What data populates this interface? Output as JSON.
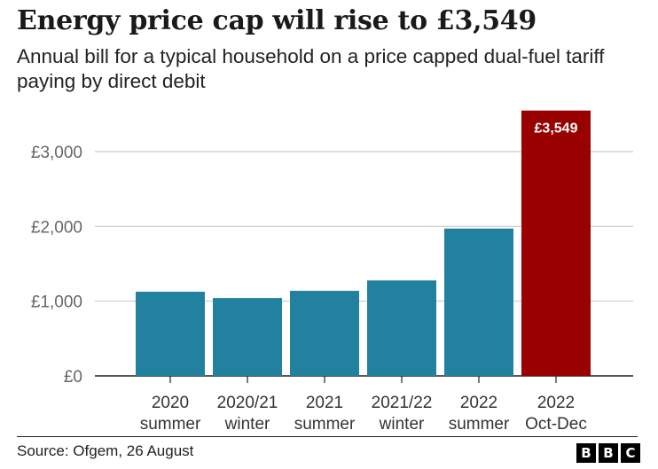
{
  "header": {
    "title": "Energy price cap will rise to £3,549",
    "subtitle": "Annual bill for a typical household on a price capped dual-fuel tariff paying by direct debit"
  },
  "footer": {
    "source": "Source: Ofgem, 26 August",
    "logo": [
      "B",
      "B",
      "C"
    ]
  },
  "chart_data": {
    "type": "bar",
    "title": "Energy price cap will rise to £3,549",
    "subtitle": "Annual bill for a typical household on a price capped dual-fuel tariff paying by direct debit",
    "categories": [
      [
        "2020",
        "summer"
      ],
      [
        "2020/21",
        "winter"
      ],
      [
        "2021",
        "summer"
      ],
      [
        "2021/22",
        "winter"
      ],
      [
        "2022",
        "summer"
      ],
      [
        "2022",
        "Oct-Dec"
      ]
    ],
    "values": [
      1126,
      1042,
      1138,
      1277,
      1971,
      3549
    ],
    "data_labels": [
      null,
      null,
      null,
      null,
      null,
      "£3,549"
    ],
    "yticks": [
      0,
      1000,
      2000,
      3000
    ],
    "ytick_labels": [
      "£0",
      "£1,000",
      "£2,000",
      "£3,000"
    ],
    "ylim": [
      0,
      3549
    ],
    "grid": true,
    "colors": {
      "bar": "#22819e",
      "highlight": "#990000",
      "grid": "#cccccc",
      "axis": "#222222",
      "tick_text": "#666666"
    },
    "highlight_index": 5
  }
}
